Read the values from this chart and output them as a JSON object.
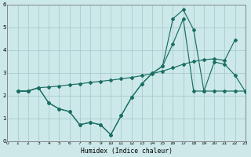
{
  "bg_color": "#cce8e8",
  "grid_color": "#aacccc",
  "line_color": "#1a6e64",
  "xlim": [
    0,
    23
  ],
  "ylim": [
    0,
    6
  ],
  "xticks": [
    0,
    1,
    2,
    3,
    4,
    5,
    6,
    7,
    8,
    9,
    10,
    11,
    12,
    13,
    14,
    15,
    16,
    17,
    18,
    19,
    20,
    21,
    22,
    23
  ],
  "yticks": [
    0,
    1,
    2,
    3,
    4,
    5,
    6
  ],
  "xlabel": "Humidex (Indice chaleur)",
  "curve1_x": [
    1,
    2,
    3,
    4,
    5,
    6,
    7,
    8,
    9,
    10,
    11,
    12,
    13,
    14,
    15,
    16,
    17,
    18,
    19,
    20,
    21,
    22
  ],
  "curve1_y": [
    2.2,
    2.2,
    2.35,
    2.38,
    2.42,
    2.48,
    2.52,
    2.58,
    2.63,
    2.68,
    2.74,
    2.8,
    2.88,
    2.97,
    3.08,
    3.22,
    3.38,
    3.5,
    3.58,
    3.62,
    3.55,
    4.45
  ],
  "curve2_x": [
    1,
    2,
    3,
    4,
    5,
    6,
    7,
    8,
    9,
    10,
    11,
    12,
    13,
    14,
    15,
    16,
    17,
    18,
    19,
    20,
    21,
    22,
    23
  ],
  "curve2_y": [
    2.2,
    2.2,
    2.35,
    1.68,
    1.42,
    1.3,
    0.72,
    0.82,
    0.72,
    0.28,
    1.12,
    1.92,
    2.52,
    2.98,
    3.3,
    5.38,
    5.78,
    4.9,
    2.2,
    2.2,
    2.2,
    2.2,
    2.2
  ],
  "curve3_x": [
    1,
    2,
    3,
    4,
    5,
    6,
    7,
    8,
    9,
    10,
    11,
    12,
    13,
    14,
    15,
    16,
    17,
    18,
    19,
    20,
    21,
    22,
    23
  ],
  "curve3_y": [
    2.2,
    2.2,
    2.35,
    1.68,
    1.42,
    1.3,
    0.72,
    0.82,
    0.72,
    0.28,
    1.12,
    1.92,
    2.52,
    2.98,
    3.3,
    4.28,
    5.38,
    2.2,
    2.2,
    3.48,
    3.38,
    2.9,
    2.18
  ]
}
